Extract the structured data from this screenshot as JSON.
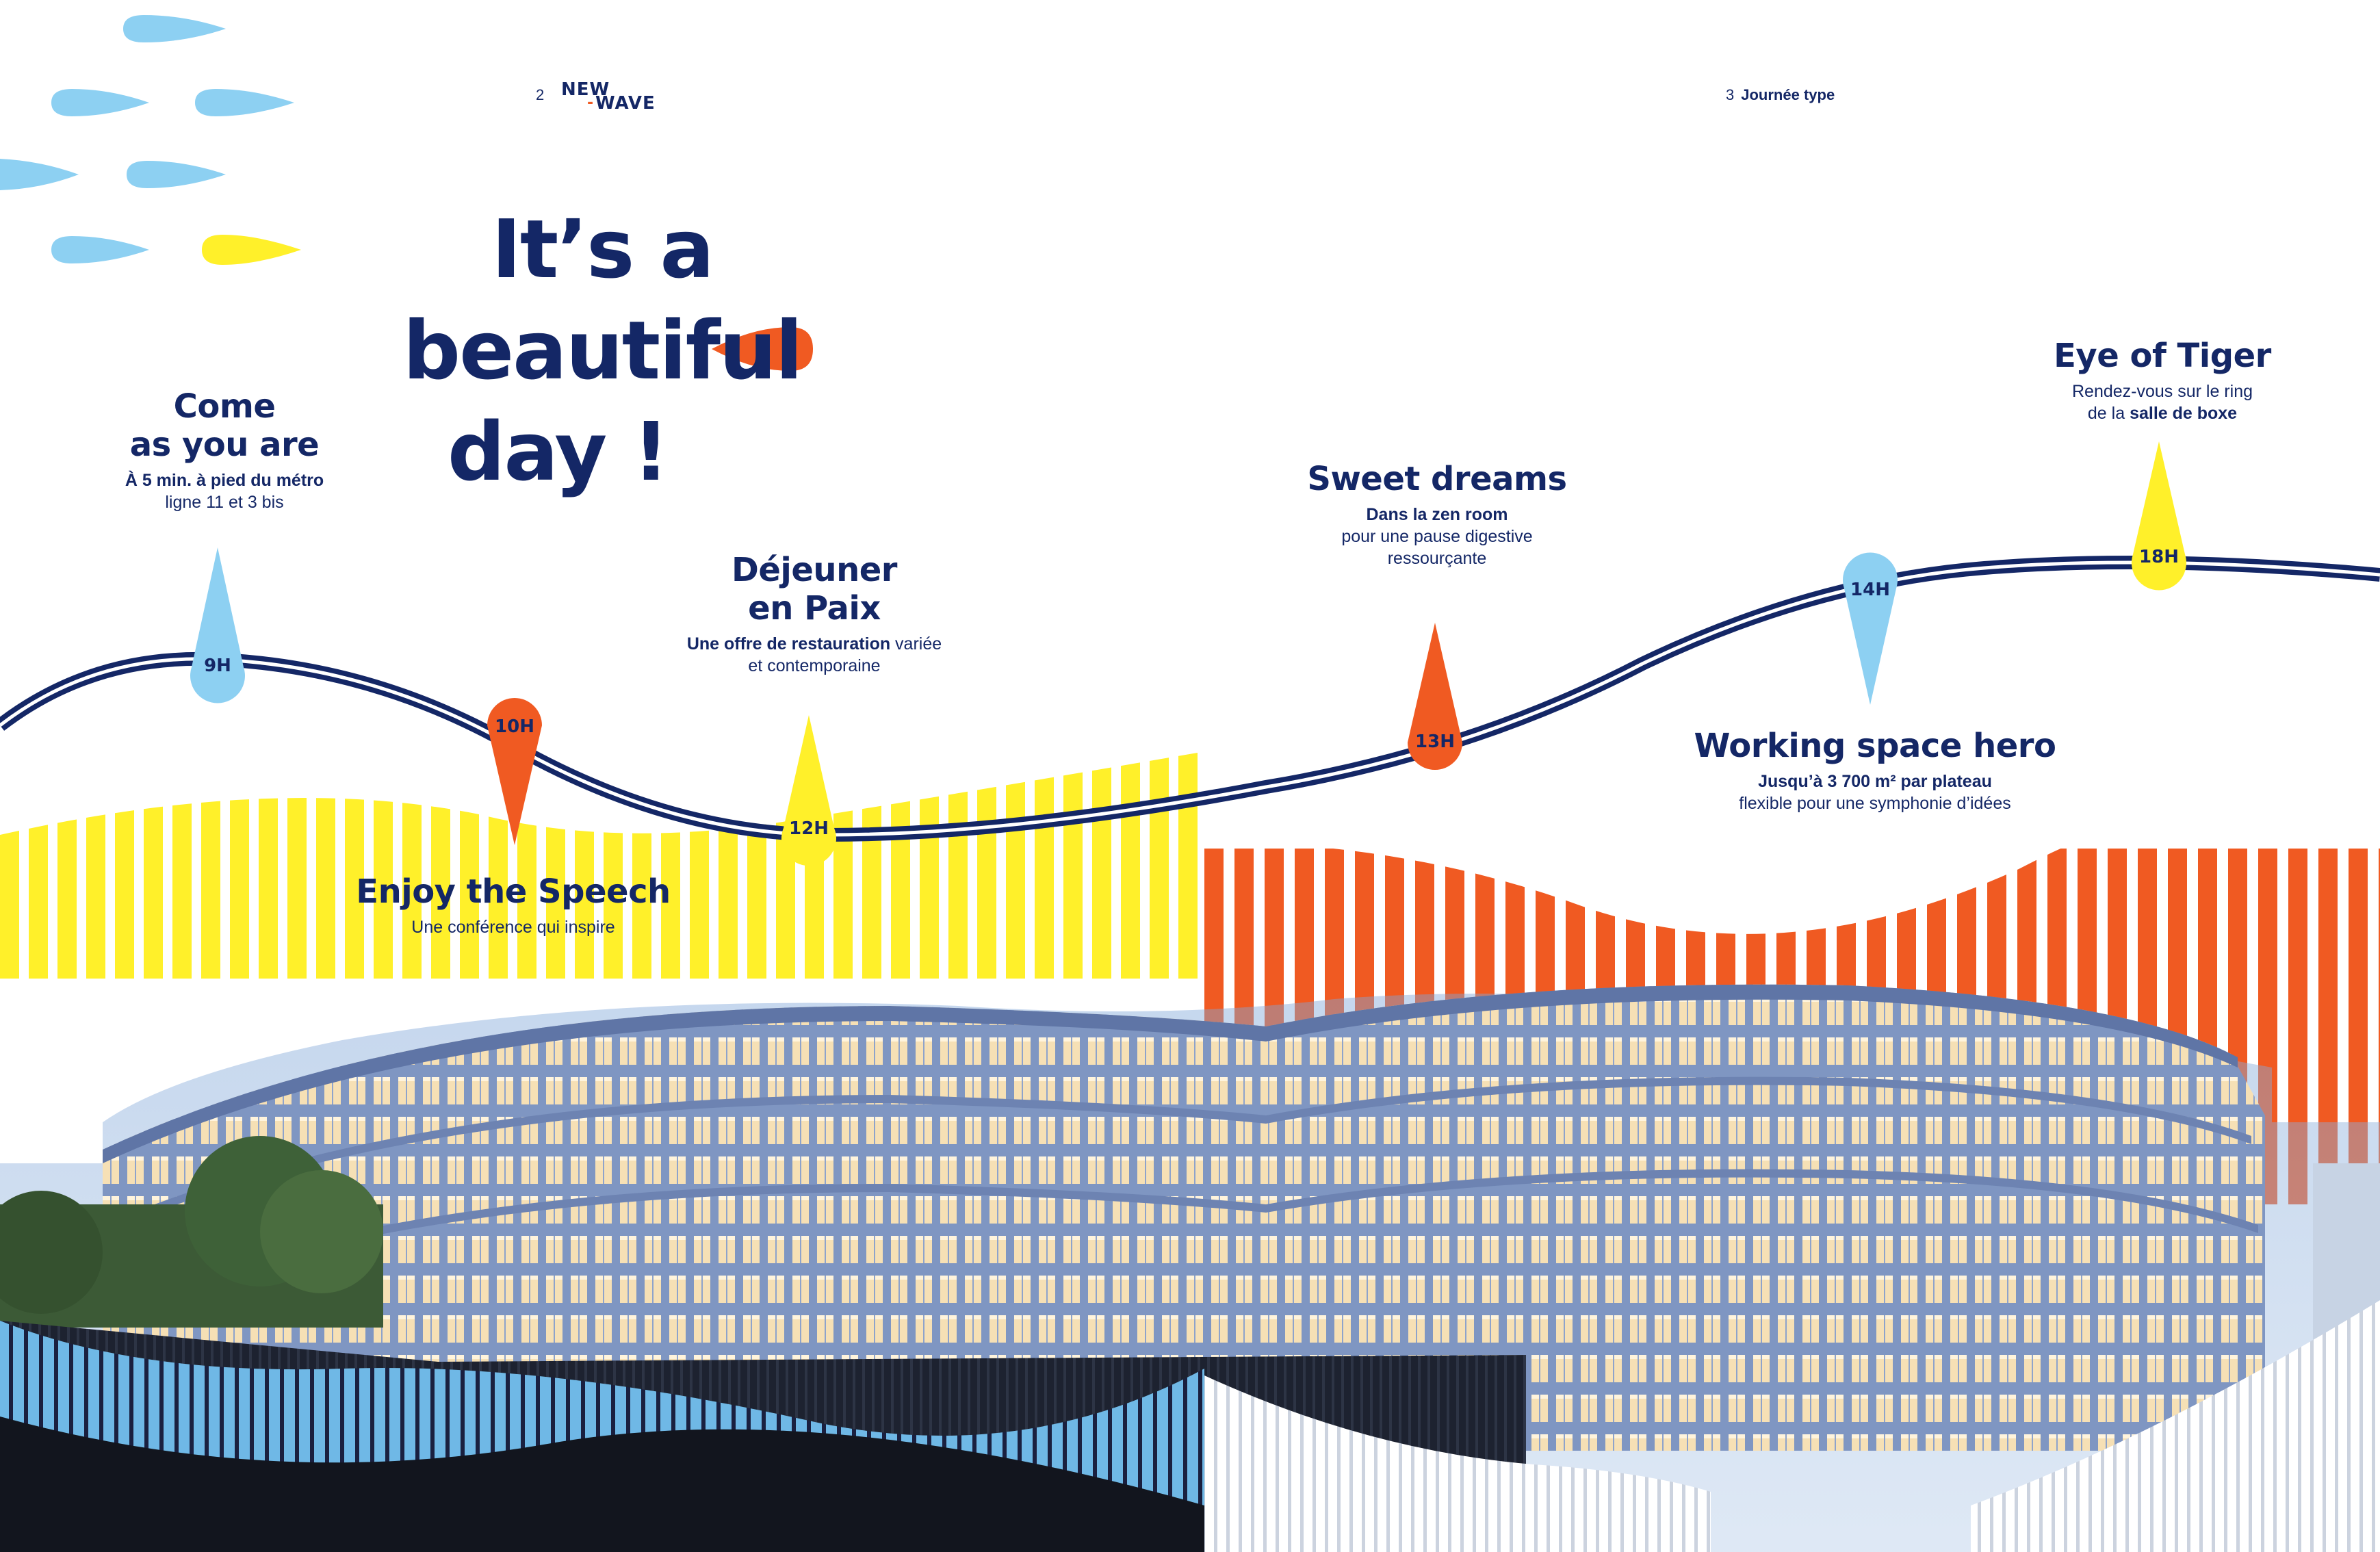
{
  "header": {
    "left_page_number": "2",
    "logo_line1": "NEW",
    "logo_dash": "-",
    "logo_line2": "WAVE",
    "right_page_number": "3",
    "right_section": "Journée type"
  },
  "title": {
    "line1": "It’s a beautiful",
    "line2": "day !"
  },
  "timeline": [
    {
      "hour": "9H",
      "title_line1": "Come",
      "title_line2": "as you are",
      "bold": "À 5 min. à pied du métro",
      "text_line2": "ligne 11 et 3 bis",
      "marker_color": "#8dd0f2"
    },
    {
      "hour": "10H",
      "title_line1": "Enjoy the Speech",
      "text": "Une conférence qui inspire",
      "marker_color": "#f05a22"
    },
    {
      "hour": "12H",
      "title_line1": "Déjeuner",
      "title_line2": "en Paix",
      "bold": "Une offre de restauration",
      "text_rest": " variée",
      "text_line2": "et contemporaine",
      "marker_color": "#fff02a"
    },
    {
      "hour": "13H",
      "title_line1": "Sweet dreams",
      "bold": "Dans la zen room",
      "text_line2": "pour une pause digestive",
      "text_line3": "ressourçante",
      "marker_color": "#f05a22"
    },
    {
      "hour": "14H",
      "title_line1": "Working space hero",
      "bold": "Jusqu’à 3 700 m² par plateau",
      "text_line2": "flexible pour une symphonie d’idées",
      "marker_color": "#8dd0f2"
    },
    {
      "hour": "18H",
      "title_line1": "Eye of Tiger",
      "text_line1": "Rendez-vous sur le ring",
      "text_pre": "de la ",
      "bold": "salle de boxe",
      "marker_color": "#fff02a"
    }
  ],
  "colors": {
    "navy": "#142766",
    "sky": "#8dd0f2",
    "yellow": "#fff02a",
    "orange": "#f05a22"
  },
  "icons": [
    "raindrop-shape",
    "wave-line",
    "location-pin"
  ]
}
